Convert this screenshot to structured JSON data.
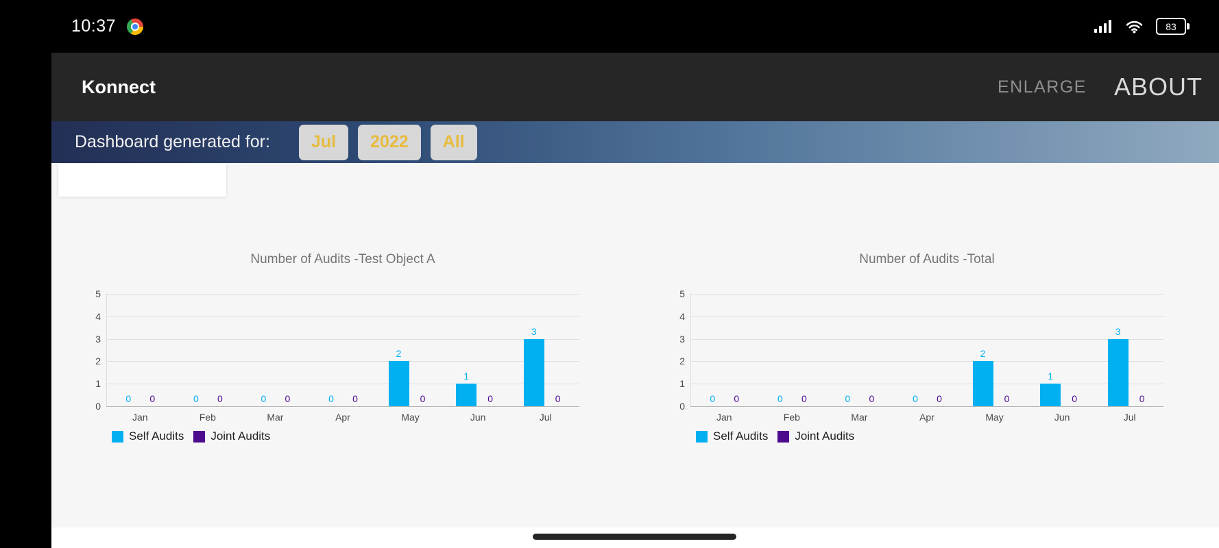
{
  "status_bar": {
    "time": "10:37",
    "battery_level": "83"
  },
  "app_bar": {
    "title": "Konnect",
    "enlarge_label": "ENLARGE",
    "about_label": "ABOUT"
  },
  "filter_bar": {
    "label": "Dashboard generated for:",
    "filters": [
      {
        "label": "Jul"
      },
      {
        "label": "2022"
      },
      {
        "label": "All"
      }
    ]
  },
  "colors": {
    "self_audits": "#00b0f0",
    "joint_audits": "#4c0a8d",
    "filter_button_text": "#e7bc3f"
  },
  "chart_data": [
    {
      "type": "bar",
      "title": "Number of Audits -Test Object A",
      "categories": [
        "Jan",
        "Feb",
        "Mar",
        "Apr",
        "May",
        "Jun",
        "Jul"
      ],
      "series": [
        {
          "name": "Self Audits",
          "color": "#00b0f0",
          "values": [
            0,
            0,
            0,
            0,
            2,
            1,
            3
          ]
        },
        {
          "name": "Joint Audits",
          "color": "#4c0a8d",
          "values": [
            0,
            0,
            0,
            0,
            0,
            0,
            0
          ]
        }
      ],
      "ylim": [
        0,
        5
      ],
      "yticks": [
        0,
        1,
        2,
        3,
        4,
        5
      ],
      "grid": true,
      "legend_position": "bottom",
      "data_labels": true
    },
    {
      "type": "bar",
      "title": "Number of Audits -Total",
      "categories": [
        "Jan",
        "Feb",
        "Mar",
        "Apr",
        "May",
        "Jun",
        "Jul"
      ],
      "series": [
        {
          "name": "Self Audits",
          "color": "#00b0f0",
          "values": [
            0,
            0,
            0,
            0,
            2,
            1,
            3
          ]
        },
        {
          "name": "Joint Audits",
          "color": "#4c0a8d",
          "values": [
            0,
            0,
            0,
            0,
            0,
            0,
            0
          ]
        }
      ],
      "ylim": [
        0,
        5
      ],
      "yticks": [
        0,
        1,
        2,
        3,
        4,
        5
      ],
      "grid": true,
      "legend_position": "bottom",
      "data_labels": true
    }
  ]
}
